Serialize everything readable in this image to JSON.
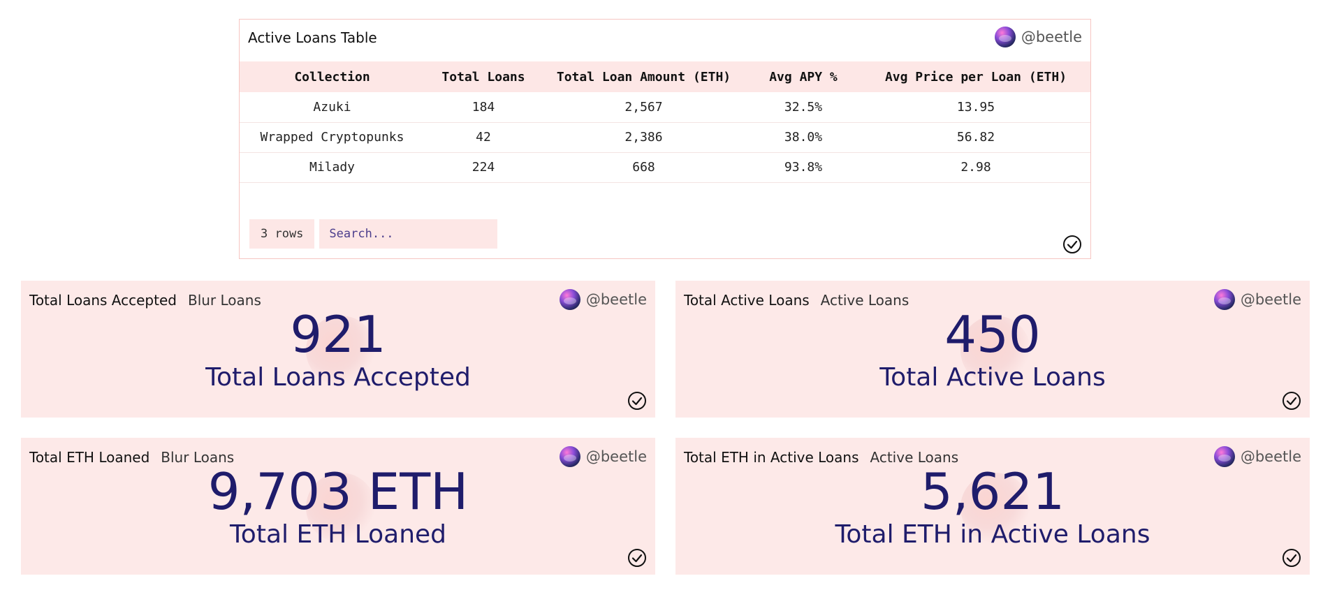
{
  "author_handle": "@beetle",
  "table_card": {
    "title": "Active Loans Table",
    "columns": [
      "Collection",
      "Total Loans",
      "Total Loan Amount (ETH)",
      "Avg APY %",
      "Avg Price per Loan (ETH)"
    ],
    "rows": [
      [
        "Azuki",
        "184",
        "2,567",
        "32.5%",
        "13.95"
      ],
      [
        "Wrapped Cryptopunks",
        "42",
        "2,386",
        "38.0%",
        "56.82"
      ],
      [
        "Milady",
        "224",
        "668",
        "93.8%",
        "2.98"
      ]
    ],
    "row_count": "3 rows",
    "search_placeholder": "Search..."
  },
  "stat_cards": [
    {
      "title": "Total Loans Accepted",
      "subtitle": "Blur Loans",
      "value": "921",
      "label": "Total Loans Accepted"
    },
    {
      "title": "Total Active Loans",
      "subtitle": "Active Loans",
      "value": "450",
      "label": "Total Active Loans"
    },
    {
      "title": "Total ETH Loaned",
      "subtitle": "Blur Loans",
      "value": "9,703 ETH",
      "label": "Total ETH Loaned"
    },
    {
      "title": "Total ETH in Active Loans",
      "subtitle": "Active Loans",
      "value": "5,621",
      "label": "Total ETH in Active Loans"
    }
  ],
  "icons": {
    "avatar": "user-avatar",
    "check": "check-circle-icon"
  },
  "colors": {
    "card_bg": "#fde9e8",
    "table_header_bg": "#fde7e6",
    "value_text": "#1f1c6b",
    "table_border": "#f6c6c2"
  }
}
